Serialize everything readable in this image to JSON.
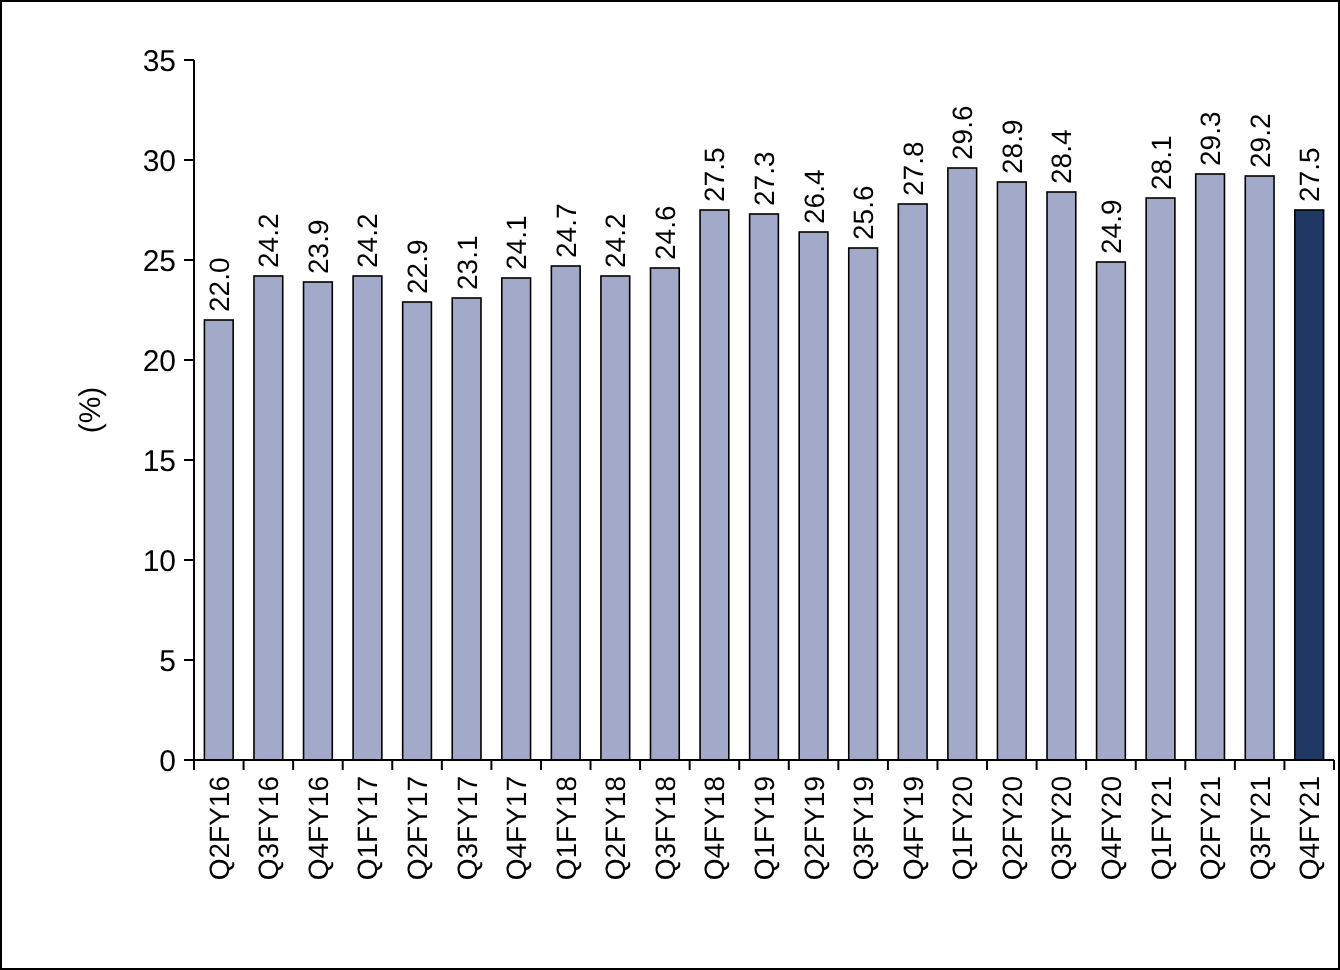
{
  "chart_data": {
    "type": "bar",
    "ylabel": "(%)",
    "categories": [
      "Q2FY16",
      "Q3FY16",
      "Q4FY16",
      "Q1FY17",
      "Q2FY17",
      "Q3FY17",
      "Q4FY17",
      "Q1FY18",
      "Q2FY18",
      "Q3FY18",
      "Q4FY18",
      "Q1FY19",
      "Q2FY19",
      "Q3FY19",
      "Q4FY19",
      "Q1FY20",
      "Q2FY20",
      "Q3FY20",
      "Q4FY20",
      "Q1FY21",
      "Q2FY21",
      "Q3FY21",
      "Q4FY21"
    ],
    "values": [
      22.0,
      24.2,
      23.9,
      24.2,
      22.9,
      23.1,
      24.1,
      24.7,
      24.2,
      24.6,
      27.5,
      27.3,
      26.4,
      25.6,
      27.8,
      29.6,
      28.9,
      28.4,
      24.9,
      28.1,
      29.3,
      29.2,
      27.5
    ],
    "value_labels": [
      "22.0",
      "24.2",
      "23.9",
      "24.2",
      "22.9",
      "23.1",
      "24.1",
      "24.7",
      "24.2",
      "24.6",
      "27.5",
      "27.3",
      "26.4",
      "25.6",
      "27.8",
      "29.6",
      "28.9",
      "28.4",
      "24.9",
      "28.1",
      "29.3",
      "29.2",
      "27.5"
    ],
    "colors": [
      "#a3aac9",
      "#a3aac9",
      "#a3aac9",
      "#a3aac9",
      "#a3aac9",
      "#a3aac9",
      "#a3aac9",
      "#a3aac9",
      "#a3aac9",
      "#a3aac9",
      "#a3aac9",
      "#a3aac9",
      "#a3aac9",
      "#a3aac9",
      "#a3aac9",
      "#a3aac9",
      "#a3aac9",
      "#a3aac9",
      "#a3aac9",
      "#a3aac9",
      "#a3aac9",
      "#a3aac9",
      "#1f3864"
    ],
    "ylim": [
      0,
      35
    ],
    "yticks": [
      0,
      5,
      10,
      15,
      20,
      25,
      30,
      35
    ],
    "grid": false
  }
}
